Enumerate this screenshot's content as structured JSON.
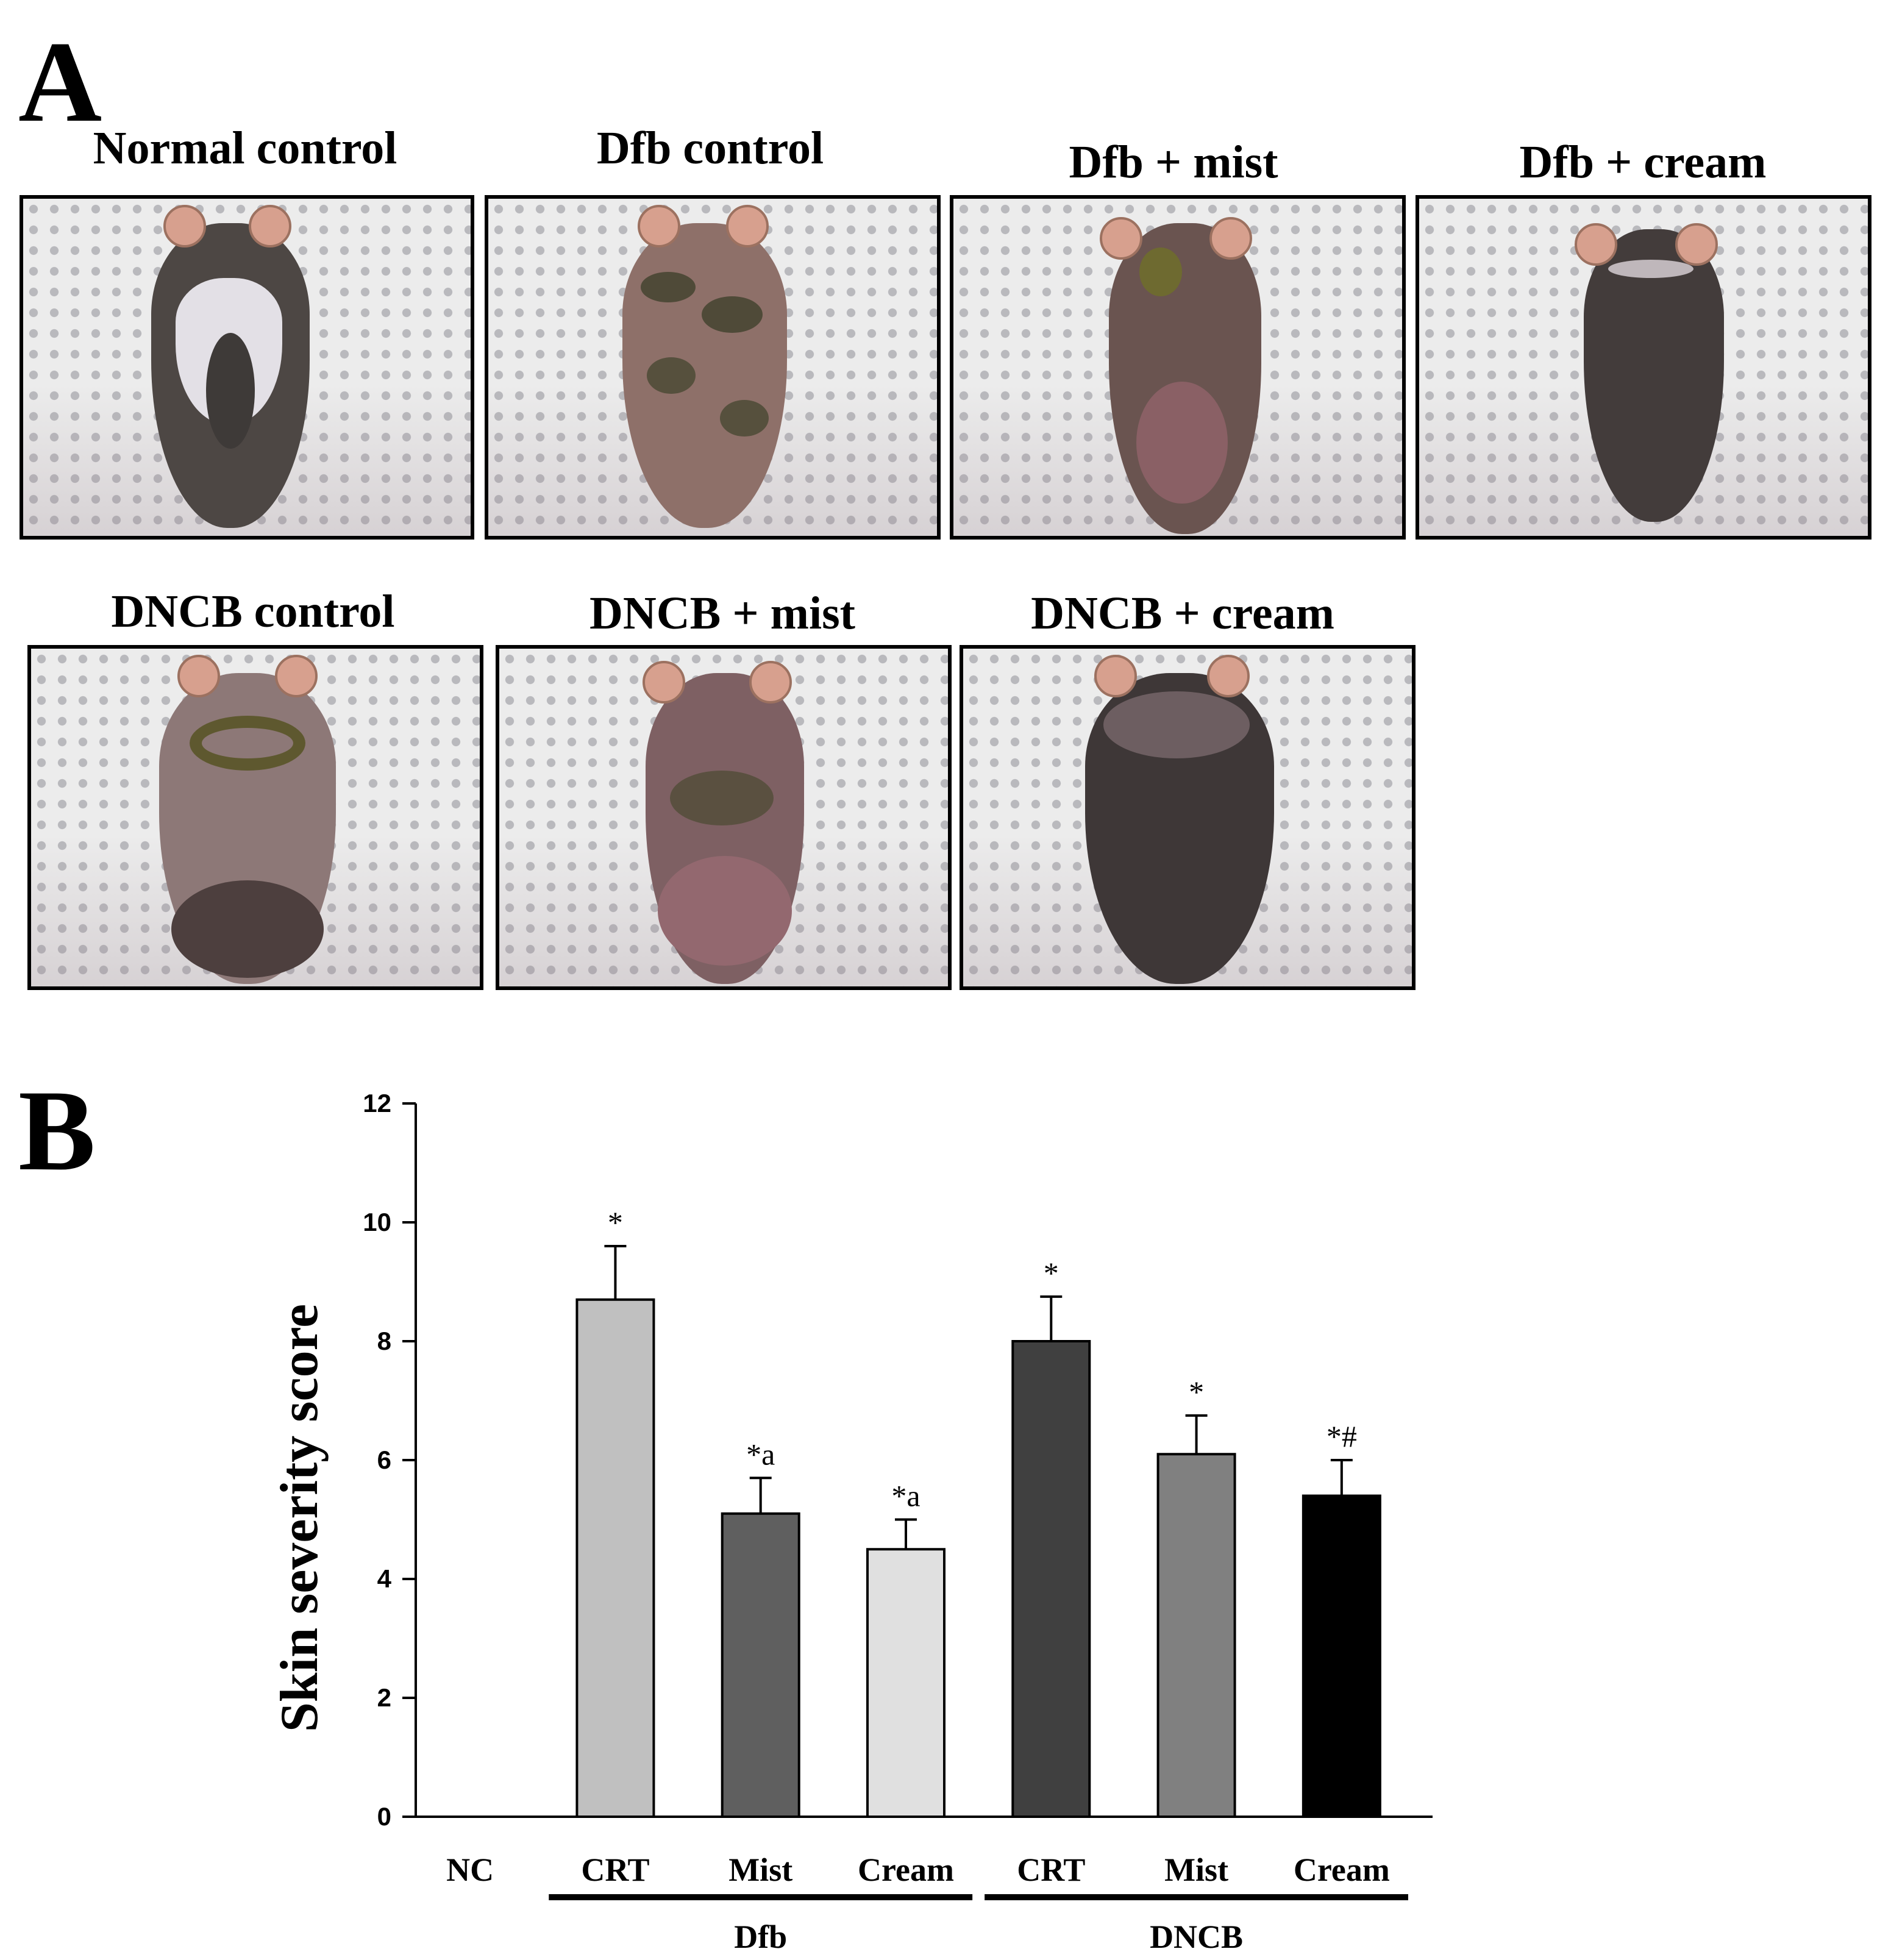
{
  "panel_a": {
    "letter": "A",
    "photos": [
      {
        "title": "Normal control",
        "mouse": "normal"
      },
      {
        "title": "Dfb control",
        "mouse": "dfb"
      },
      {
        "title": "Dfb + mist",
        "mouse": "dfb_mist"
      },
      {
        "title": "Dfb + cream",
        "mouse": "dfb_cream"
      },
      {
        "title": "DNCB control",
        "mouse": "dncb"
      },
      {
        "title": "DNCB + mist",
        "mouse": "dncb_mist"
      },
      {
        "title": "DNCB + cream",
        "mouse": "dncb_cream"
      }
    ]
  },
  "panel_b": {
    "letter": "B"
  },
  "chart_data": {
    "type": "bar",
    "ylabel": "Skin severity score",
    "ylim": [
      0,
      12
    ],
    "yticks": [
      "0",
      "2",
      "4",
      "6",
      "8",
      "10",
      "12"
    ],
    "categories": [
      "NC",
      "CRT",
      "Mist",
      "Cream",
      "CRT",
      "Mist",
      "Cream"
    ],
    "values": [
      0,
      8.7,
      5.1,
      4.5,
      8.0,
      6.1,
      5.4
    ],
    "errors": [
      0,
      0.9,
      0.6,
      0.5,
      0.75,
      0.65,
      0.6
    ],
    "annotations": [
      "",
      "*",
      "*a",
      "*a",
      "*",
      "*",
      "*#"
    ],
    "bar_colors": [
      "#ffffff",
      "#c0c0c0",
      "#5f5f5f",
      "#e0e0e0",
      "#404040",
      "#808080",
      "#000000"
    ],
    "groups": [
      {
        "label": "Dfb",
        "from": 1,
        "to": 3
      },
      {
        "label": "DNCB",
        "from": 4,
        "to": 6
      }
    ]
  }
}
